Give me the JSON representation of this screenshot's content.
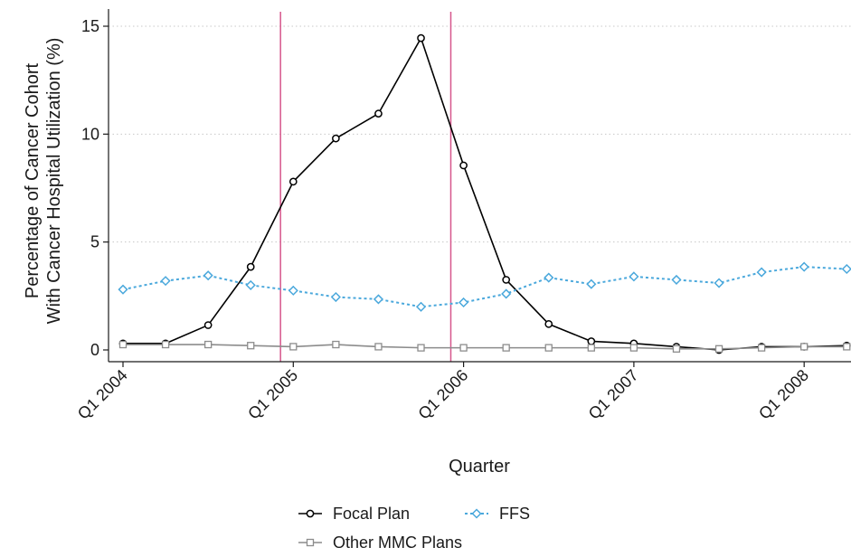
{
  "chart_data": {
    "type": "line",
    "title": "",
    "xlabel": "Quarter",
    "ylabel": "Percentage of Cancer Cohort\nWith Cancer Hospital Utilization (%)",
    "ylim": [
      0,
      15
    ],
    "yticks": [
      0,
      5,
      10,
      15
    ],
    "x_tick_labels": [
      "Q1 2004",
      "Q1 2005",
      "Q1 2006",
      "Q1 2007",
      "Q1 2008"
    ],
    "x_tick_positions": [
      0,
      4,
      8,
      12,
      16
    ],
    "x": [
      0,
      1,
      2,
      3,
      4,
      5,
      6,
      7,
      8,
      9,
      10,
      11,
      12,
      13,
      14,
      15,
      16,
      17
    ],
    "grid": "horizontal dotted",
    "vertical_reference_lines": [
      3.7,
      7.7
    ],
    "reference_line_color": "#d6568c",
    "legend_position": "bottom",
    "series": [
      {
        "name": "Focal Plan",
        "color": "#000000",
        "marker": "circle",
        "line_style": "solid",
        "values": [
          0.3,
          0.3,
          1.15,
          3.85,
          7.8,
          9.8,
          10.95,
          14.45,
          8.55,
          3.25,
          1.2,
          0.4,
          0.3,
          0.15,
          0.0,
          0.15,
          0.15,
          0.2
        ]
      },
      {
        "name": "FFS",
        "color": "#4aa8dc",
        "marker": "diamond",
        "line_style": "dotted",
        "values": [
          2.8,
          3.2,
          3.45,
          3.0,
          2.75,
          2.45,
          2.35,
          2.0,
          2.2,
          2.6,
          3.35,
          3.05,
          3.4,
          3.25,
          3.1,
          3.6,
          3.85,
          3.75
        ]
      },
      {
        "name": "Other MMC Plans",
        "color": "#8c8c8c",
        "marker": "square",
        "line_style": "solid",
        "values": [
          0.25,
          0.25,
          0.25,
          0.2,
          0.15,
          0.25,
          0.15,
          0.1,
          0.1,
          0.1,
          0.1,
          0.1,
          0.1,
          0.05,
          0.05,
          0.1,
          0.15,
          0.15
        ]
      }
    ]
  }
}
